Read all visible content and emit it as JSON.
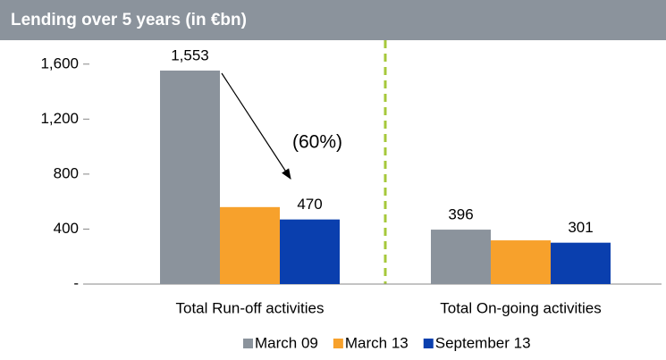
{
  "chart_data": {
    "type": "bar",
    "title": "Lending over 5 years (in €bn)",
    "categories": [
      "Total Run-off activities",
      "Total On-going activities"
    ],
    "series": [
      {
        "name": "March 09",
        "color": "#8b939c",
        "values": [
          1553,
          396
        ],
        "value_labels": [
          "1,553",
          "396"
        ]
      },
      {
        "name": "March 13",
        "color": "#f7a12c",
        "values": [
          560,
          318
        ]
      },
      {
        "name": "September 13",
        "color": "#0a3fae",
        "values": [
          470,
          301
        ],
        "value_labels": [
          "470",
          "301"
        ]
      }
    ],
    "ylim": [
      0,
      1800
    ],
    "yticks": [
      {
        "value": 0,
        "label": "-"
      },
      400,
      800,
      {
        "value": 1200,
        "label": "1,200"
      },
      {
        "value": 1600,
        "label": "1,600"
      }
    ],
    "annotations": [
      "(60%)"
    ],
    "legend": "bottom"
  }
}
